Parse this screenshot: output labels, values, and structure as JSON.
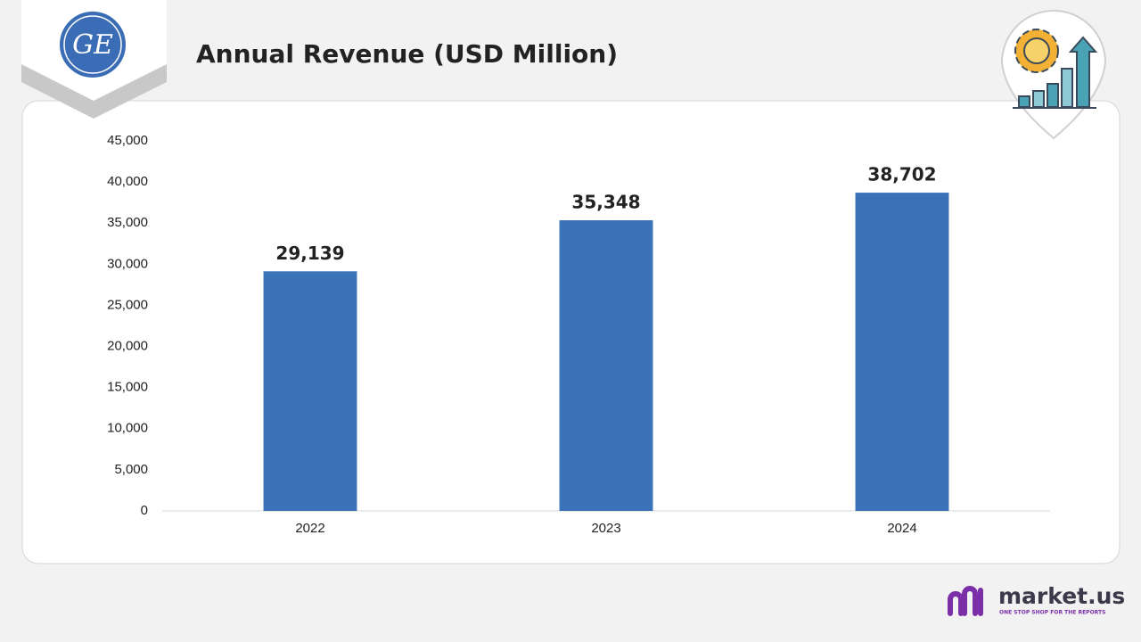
{
  "chart_data": {
    "type": "bar",
    "title": "Annual Revenue (USD Million)",
    "categories": [
      "2022",
      "2023",
      "2024"
    ],
    "values": [
      29139,
      35348,
      38702
    ],
    "value_labels": [
      "29,139",
      "35,348",
      "38,702"
    ],
    "color": "#3b73b9",
    "ylim": [
      0,
      45000
    ],
    "yticks": [
      0,
      {
        "value": 5000,
        "label": "5,000"
      },
      {
        "value": 10000,
        "label": "10,000"
      },
      {
        "value": 15000,
        "label": "15,000"
      },
      {
        "value": 20000,
        "label": "20,000"
      },
      {
        "value": 25000,
        "label": "25,000"
      },
      {
        "value": 30000,
        "label": "30,000"
      },
      {
        "value": 35000,
        "label": "35,000"
      },
      {
        "value": 40000,
        "label": "40,000"
      },
      {
        "value": 45000,
        "label": "45,000"
      }
    ],
    "grid": false
  },
  "logo": "GE",
  "brand": {
    "name": "market.us",
    "tagline": "ONE STOP SHOP FOR THE REPORTS"
  }
}
